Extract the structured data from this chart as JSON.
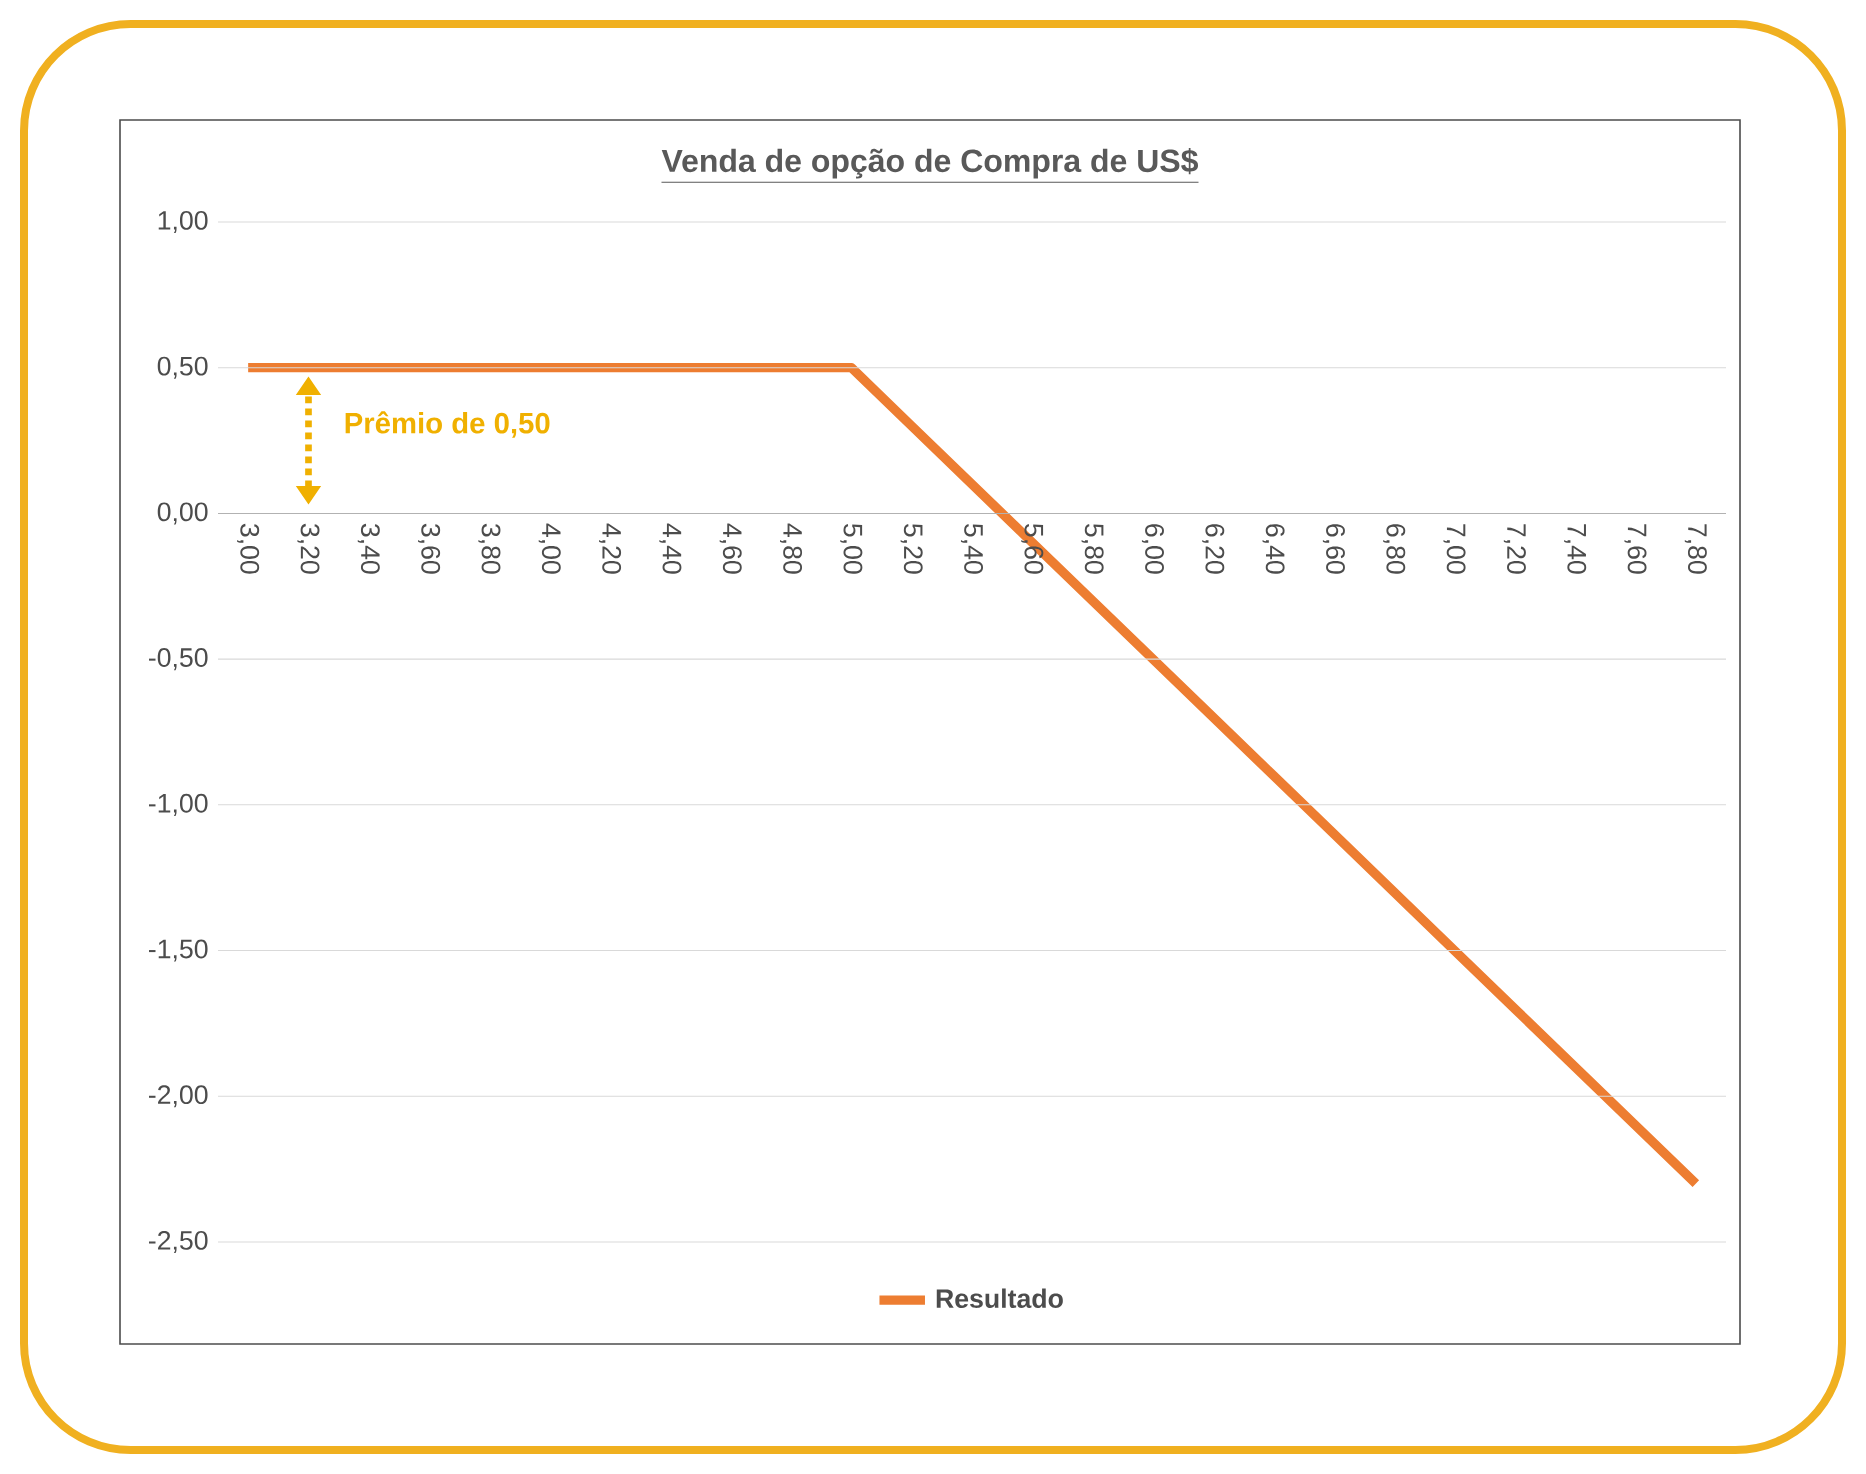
{
  "chart_data": {
    "type": "line",
    "title": "Venda de opção de Compra de US$",
    "categories": [
      "3,00",
      "3,20",
      "3,40",
      "3,60",
      "3,80",
      "4,00",
      "4,20",
      "4,40",
      "4,60",
      "4,80",
      "5,00",
      "5,20",
      "5,40",
      "5,60",
      "5,80",
      "6,00",
      "6,20",
      "6,40",
      "6,60",
      "6,80",
      "7,00",
      "7,20",
      "7,40",
      "7,60",
      "7,80"
    ],
    "series": [
      {
        "name": "Resultado",
        "color": "#ed7d31",
        "values": [
          0.5,
          0.5,
          0.5,
          0.5,
          0.5,
          0.5,
          0.5,
          0.5,
          0.5,
          0.5,
          0.5,
          0.3,
          0.1,
          -0.1,
          -0.3,
          -0.5,
          -0.7,
          -0.9,
          -1.1,
          -1.3,
          -1.5,
          -1.7,
          -1.9,
          -2.1,
          -2.3
        ]
      }
    ],
    "ylim": [
      -2.5,
      1.0
    ],
    "yticks": [
      {
        "value": -2.5,
        "label": "-2,50"
      },
      {
        "value": -2.0,
        "label": "-2,00"
      },
      {
        "value": -1.5,
        "label": "-1,50"
      },
      {
        "value": -1.0,
        "label": "-1,00"
      },
      {
        "value": -0.5,
        "label": "-0,50"
      },
      {
        "value": 0,
        "label": "0,00"
      },
      {
        "value": 0.5,
        "label": "0,50"
      },
      {
        "value": 1.0,
        "label": "1,00"
      }
    ],
    "grid": "y",
    "legend": "bottom",
    "marker": "none",
    "line_style": "solid",
    "annotations": [
      "Prêmio de 0,50"
    ]
  }
}
